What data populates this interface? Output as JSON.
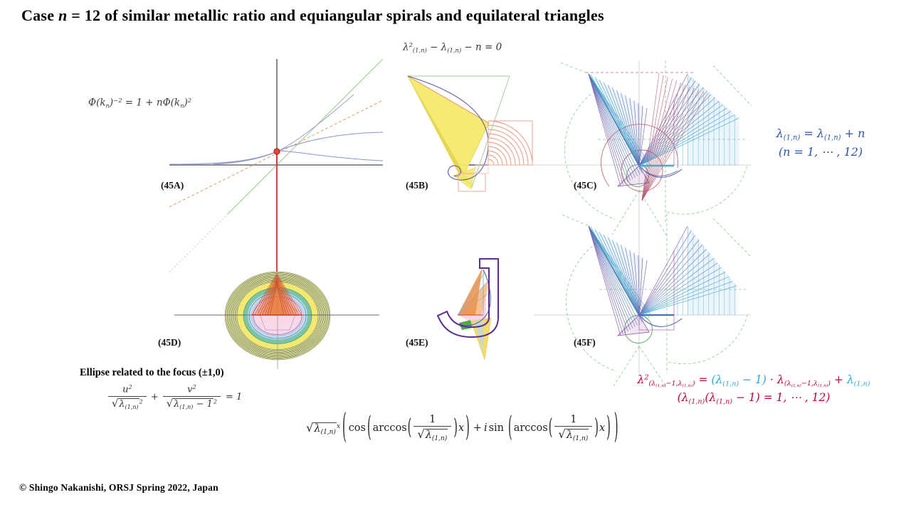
{
  "title": {
    "prefix": "Case ",
    "variable": "n",
    "suffix": " = 12 of similar metallic ratio and equiangular spirals and equilateral triangles"
  },
  "footer": "© Shingo Nakanishi, ORSJ Spring 2022, Japan",
  "panels": {
    "a": {
      "label": "(45A)",
      "formula": "Φ(k_{n})^{−2} = 1 + nΦ(k_{n})^{2}"
    },
    "b": {
      "label": "(45B)",
      "formula": "λ^{2}_{(1,n)} − λ_{(1,n)} − n = 0"
    },
    "c": {
      "label": "(45C)",
      "formula_line1": "λ_{(1,n)} = λ_{(1,n)} + n",
      "formula_line2": "(n = 1, ⋯ , 12)"
    },
    "d": {
      "label": "(45D)",
      "caption": "Ellipse related to the focus (±1,0)",
      "equation": {
        "num1": "u^{2}",
        "den1_root": "λ_{(1,n)}",
        "den1_exp": "2",
        "plus": "+",
        "num2": "v^{2}",
        "den2_root": "λ_{(1,n)} − 1",
        "den2_exp": "2",
        "rhs": "= 1"
      }
    },
    "e": {
      "label": "(45E)"
    },
    "f": {
      "label": "(45F)"
    }
  },
  "bottom_formula": {
    "radicand": "λ_{(1,n)}",
    "outer_exp": "x",
    "cos": "cos",
    "arccos": "arccos",
    "one": "1",
    "x": "x",
    "plus": "+",
    "i": "i",
    "sin": "sin"
  },
  "red_formula": {
    "seg1_red": "λ^{2}_{(λ_{(1,n)}−1,λ_{(1,n)})} = ",
    "seg2_cyan": "(λ_{(1,n)} − 1)",
    "seg3_red": " ⋅ λ_{(λ_{(1,n)}−1,λ_{(1,n)})} + ",
    "seg4_cyan": "λ_{(1,n)}",
    "line2_red": "(λ_{(1,n)}(λ_{(1,n)} − 1) = 1, ⋯ , 12)"
  },
  "colors": {
    "blue_formula": "#2d53a5",
    "red_formula": "#c00034",
    "cyan_formula": "#29abd4",
    "accent_red": "#c0392b"
  }
}
